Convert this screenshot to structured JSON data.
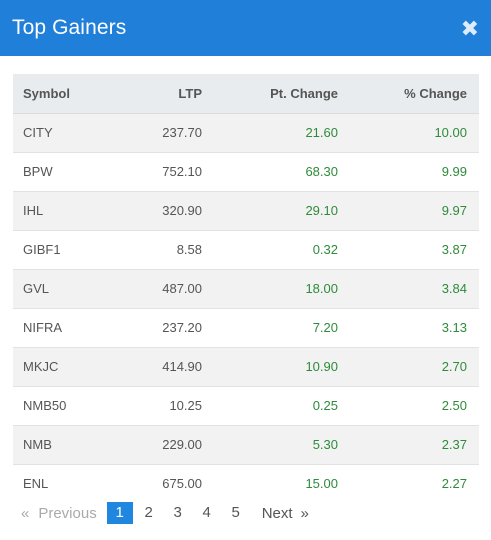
{
  "modal": {
    "title": "Top Gainers",
    "close_glyph": "✖"
  },
  "table": {
    "headers": {
      "symbol": "Symbol",
      "ltp": "LTP",
      "pt_change": "Pt. Change",
      "pct_change": "% Change"
    },
    "rows": [
      {
        "symbol": "CITY",
        "ltp": "237.70",
        "pt_change": "21.60",
        "pct_change": "10.00"
      },
      {
        "symbol": "BPW",
        "ltp": "752.10",
        "pt_change": "68.30",
        "pct_change": "9.99"
      },
      {
        "symbol": "IHL",
        "ltp": "320.90",
        "pt_change": "29.10",
        "pct_change": "9.97"
      },
      {
        "symbol": "GIBF1",
        "ltp": "8.58",
        "pt_change": "0.32",
        "pct_change": "3.87"
      },
      {
        "symbol": "GVL",
        "ltp": "487.00",
        "pt_change": "18.00",
        "pct_change": "3.84"
      },
      {
        "symbol": "NIFRA",
        "ltp": "237.20",
        "pt_change": "7.20",
        "pct_change": "3.13"
      },
      {
        "symbol": "MKJC",
        "ltp": "414.90",
        "pt_change": "10.90",
        "pct_change": "2.70"
      },
      {
        "symbol": "NMB50",
        "ltp": "10.25",
        "pt_change": "0.25",
        "pct_change": "2.50"
      },
      {
        "symbol": "NMB",
        "ltp": "229.00",
        "pt_change": "5.30",
        "pct_change": "2.37"
      },
      {
        "symbol": "ENL",
        "ltp": "675.00",
        "pt_change": "15.00",
        "pct_change": "2.27"
      }
    ]
  },
  "pagination": {
    "prev_arrow": "«",
    "prev_label": "Previous",
    "pages": [
      "1",
      "2",
      "3",
      "4",
      "5"
    ],
    "active_page": "1",
    "next_label": "Next",
    "next_arrow": "»"
  },
  "colors": {
    "header_bg": "#1f7fd9",
    "positive": "#2e8b3a",
    "active_page_bg": "#1f87e0"
  }
}
